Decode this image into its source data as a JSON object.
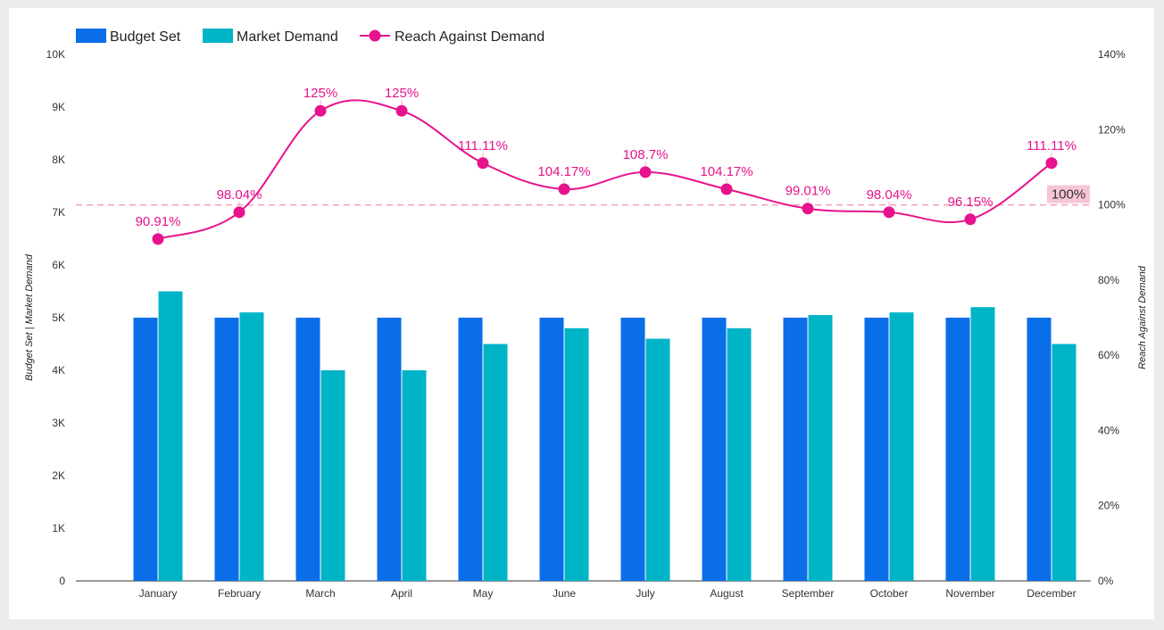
{
  "chart_data": {
    "type": "bar",
    "categories": [
      "January",
      "February",
      "March",
      "April",
      "May",
      "June",
      "July",
      "August",
      "September",
      "October",
      "November",
      "December"
    ],
    "series": [
      {
        "name": "Budget Set",
        "type": "bar",
        "axis": "left",
        "color": "#0a6ee8",
        "values": [
          5000,
          5000,
          5000,
          5000,
          5000,
          5000,
          5000,
          5000,
          5000,
          5000,
          5000,
          5000
        ]
      },
      {
        "name": "Market Demand",
        "type": "bar",
        "axis": "left",
        "color": "#00b4c8",
        "values": [
          5500,
          5100,
          4000,
          4000,
          4500,
          4800,
          4600,
          4800,
          5050,
          5100,
          5200,
          4500
        ]
      },
      {
        "name": "Reach Against Demand",
        "type": "line",
        "axis": "right",
        "color": "#e6138c",
        "values": [
          90.91,
          98.04,
          125,
          125,
          111.11,
          104.17,
          108.7,
          104.17,
          99.01,
          98.04,
          96.15,
          111.11
        ],
        "labels": [
          "90.91%",
          "98.04%",
          "125%",
          "125%",
          "111.11%",
          "104.17%",
          "108.7%",
          "104.17%",
          "99.01%",
          "98.04%",
          "96.15%",
          "111.11%"
        ]
      }
    ],
    "left_axis": {
      "title": "Budget Set | Market Demand",
      "ylim": [
        0,
        10000
      ],
      "ticks": [
        "0",
        "1K",
        "2K",
        "3K",
        "4K",
        "5K",
        "6K",
        "7K",
        "8K",
        "9K",
        "10K"
      ]
    },
    "right_axis": {
      "title": "Reach Against Demand",
      "ylim": [
        0,
        140
      ],
      "ticks": [
        "0%",
        "20%",
        "40%",
        "60%",
        "80%",
        "100%",
        "120%",
        "140%"
      ]
    },
    "reference_line": {
      "value": 100,
      "label": "100%",
      "color": "#f2a0b5"
    },
    "legend": {
      "position": "top-left"
    }
  }
}
